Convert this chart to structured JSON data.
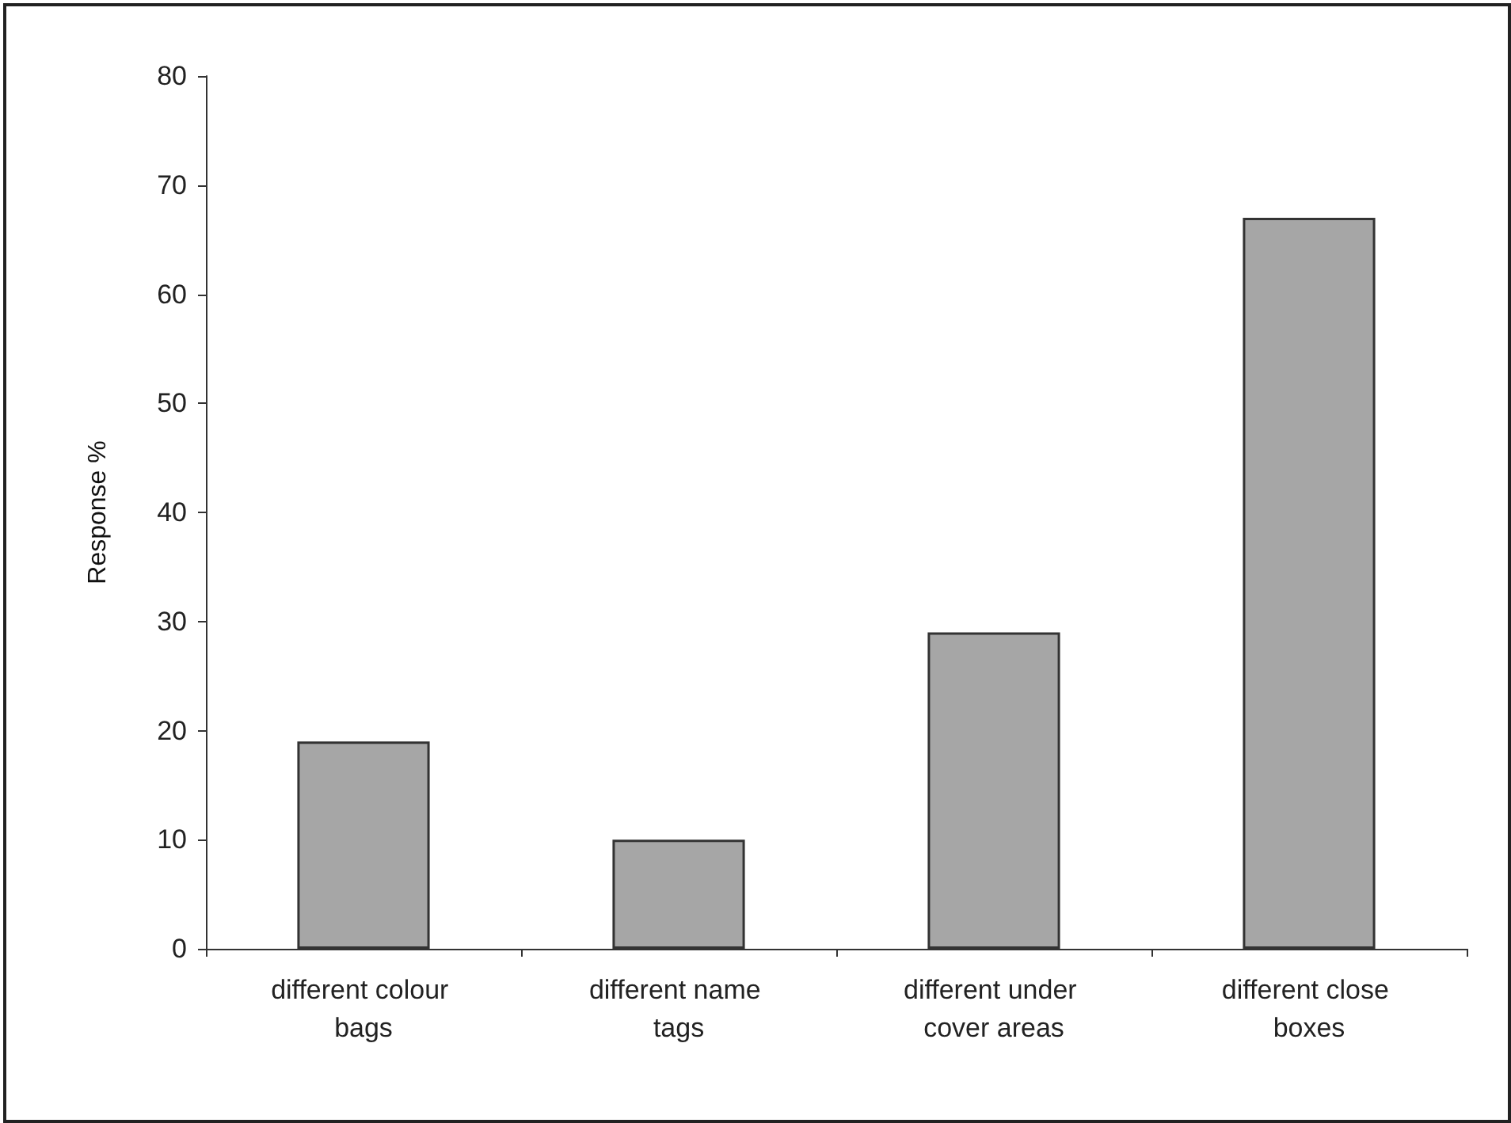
{
  "chart_data": {
    "type": "bar",
    "ylabel": "Response %",
    "categories": [
      "different colour bags",
      "different name tags",
      "different under cover areas",
      "different close boxes"
    ],
    "values": [
      19,
      10,
      29,
      67
    ],
    "color": "#a6a6a6",
    "ylim": [
      0,
      80
    ],
    "yticks": [
      0,
      10,
      20,
      30,
      40,
      50,
      60,
      70,
      80
    ],
    "grid": false
  }
}
